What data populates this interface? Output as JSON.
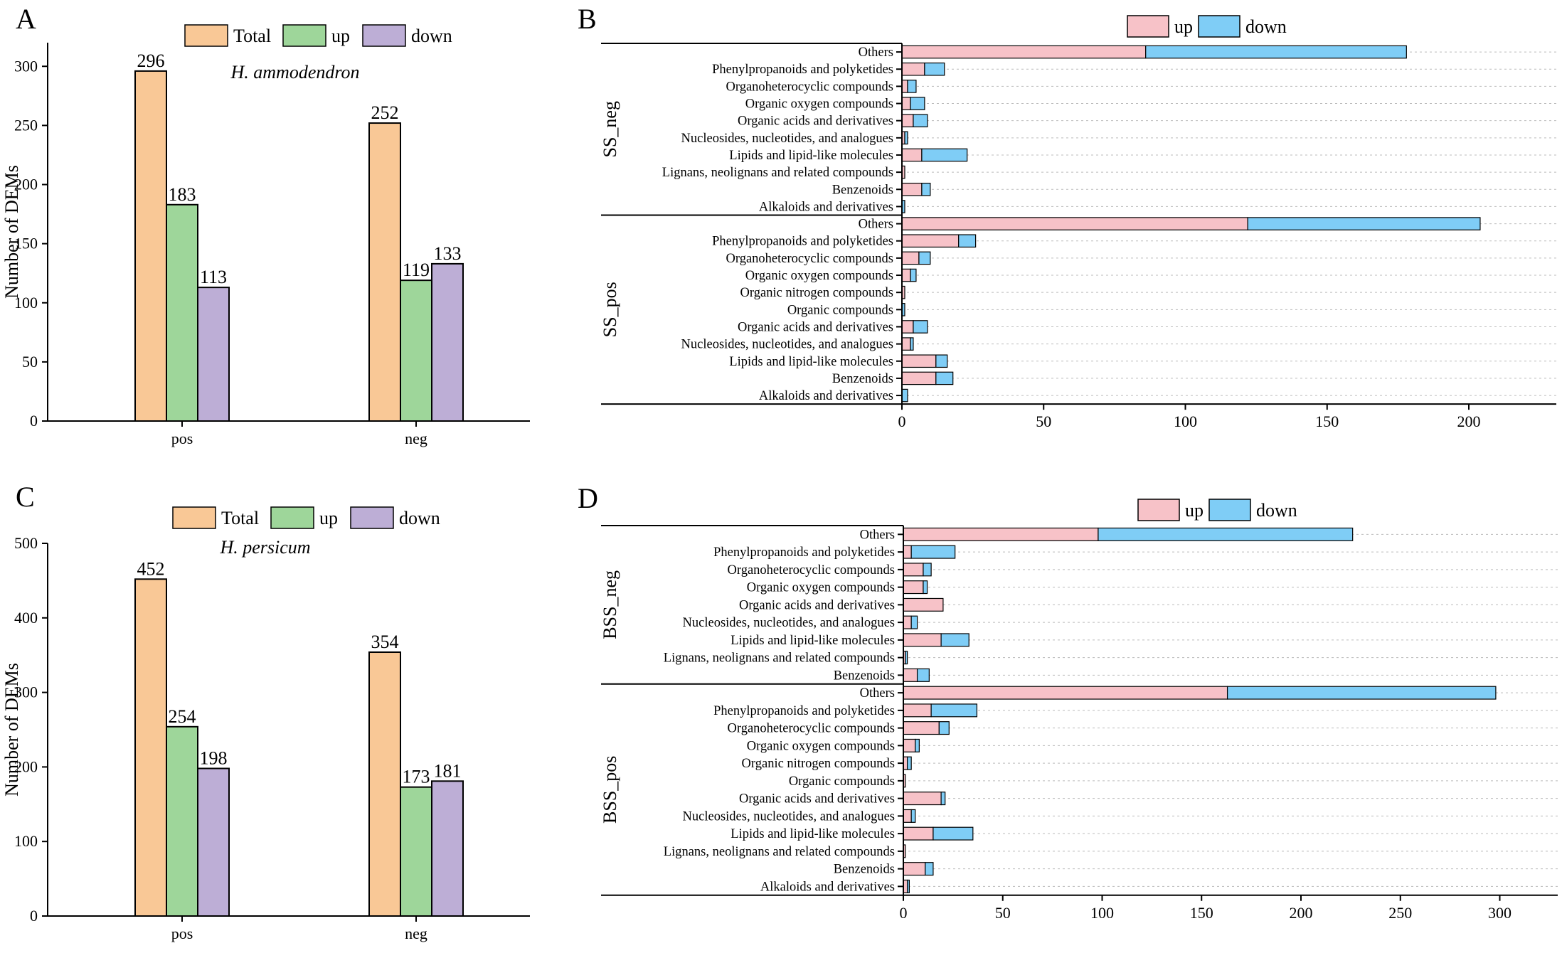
{
  "colors": {
    "total": "#F9C896",
    "up_green": "#9ED69A",
    "down_purple": "#BDAED6",
    "up_pink": "#F7C2C8",
    "down_blue": "#7FCDF6"
  },
  "chart_data": [
    {
      "panel_label": "A",
      "type": "bar",
      "subtitle": "H. ammodendron",
      "categories": [
        "pos",
        "neg"
      ],
      "series": [
        {
          "name": "Total",
          "values": [
            296,
            252
          ]
        },
        {
          "name": "up",
          "values": [
            183,
            119
          ]
        },
        {
          "name": "down",
          "values": [
            113,
            133
          ]
        }
      ],
      "ylabel": "Number of DEMs",
      "ylim": [
        0,
        320
      ],
      "yticks": [
        0,
        50,
        100,
        150,
        200,
        250,
        300
      ],
      "legend": "top-center"
    },
    {
      "panel_label": "B",
      "type": "bar",
      "orientation": "horizontal-stacked",
      "legend_series": [
        "up",
        "down"
      ],
      "xlim": [
        0,
        230
      ],
      "xticks": [
        0,
        50,
        100,
        150,
        200
      ],
      "groups": [
        {
          "name": "SS_neg",
          "categories": [
            "Others",
            "Phenylpropanoids and polyketides",
            "Organoheterocyclic compounds",
            "Organic oxygen compounds",
            "Organic acids and derivatives",
            "Nucleosides, nucleotides, and analogues",
            "Lipids and lipid-like molecules",
            "Lignans, neolignans and related compounds",
            "Benzenoids",
            "Alkaloids and derivatives"
          ],
          "up": [
            86,
            8,
            2,
            3,
            4,
            1,
            7,
            1,
            7,
            0
          ],
          "down": [
            92,
            7,
            3,
            5,
            5,
            1,
            16,
            0,
            3,
            1
          ]
        },
        {
          "name": "SS_pos",
          "categories": [
            "Others",
            "Phenylpropanoids and polyketides",
            "Organoheterocyclic compounds",
            "Organic oxygen compounds",
            "Organic nitrogen compounds",
            "Organic compounds",
            "Organic acids and derivatives",
            "Nucleosides, nucleotides, and analogues",
            "Lipids and lipid-like molecules",
            "Benzenoids",
            "Alkaloids and derivatives"
          ],
          "up": [
            122,
            20,
            6,
            3,
            1,
            0,
            4,
            3,
            12,
            12,
            0
          ],
          "down": [
            82,
            6,
            4,
            2,
            0,
            1,
            5,
            1,
            4,
            6,
            2
          ]
        }
      ]
    },
    {
      "panel_label": "C",
      "type": "bar",
      "subtitle": "H. persicum",
      "categories": [
        "pos",
        "neg"
      ],
      "series": [
        {
          "name": "Total",
          "values": [
            452,
            354
          ]
        },
        {
          "name": "up",
          "values": [
            254,
            173
          ]
        },
        {
          "name": "down",
          "values": [
            198,
            181
          ]
        }
      ],
      "ylabel": "Number of DEMs",
      "ylim": [
        0,
        500
      ],
      "yticks": [
        0,
        100,
        200,
        300,
        400,
        500
      ],
      "legend": "top-center"
    },
    {
      "panel_label": "D",
      "type": "bar",
      "orientation": "horizontal-stacked",
      "legend_series": [
        "up",
        "down"
      ],
      "xlim": [
        0,
        330
      ],
      "xticks": [
        0,
        50,
        100,
        150,
        200,
        250,
        300
      ],
      "groups": [
        {
          "name": "BSS_neg",
          "categories": [
            "Others",
            "Phenylpropanoids and polyketides",
            "Organoheterocyclic compounds",
            "Organic oxygen compounds",
            "Organic acids and derivatives",
            "Nucleosides, nucleotides, and analogues",
            "Lipids and lipid-like molecules",
            "Lignans, neolignans and related compounds",
            "Benzenoids"
          ],
          "up": [
            98,
            4,
            10,
            10,
            20,
            4,
            19,
            1,
            7
          ],
          "down": [
            128,
            22,
            4,
            2,
            0,
            3,
            14,
            1,
            6
          ]
        },
        {
          "name": "BSS_pos",
          "categories": [
            "Others",
            "Phenylpropanoids and polyketides",
            "Organoheterocyclic compounds",
            "Organic oxygen compounds",
            "Organic nitrogen compounds",
            "Organic compounds",
            "Organic acids and derivatives",
            "Nucleosides, nucleotides, and analogues",
            "Lipids and lipid-like molecules",
            "Lignans, neolignans and related compounds",
            "Benzenoids",
            "Alkaloids and derivatives"
          ],
          "up": [
            163,
            14,
            18,
            6,
            2,
            1,
            19,
            4,
            15,
            1,
            11,
            2
          ],
          "down": [
            135,
            23,
            5,
            2,
            2,
            0,
            2,
            2,
            20,
            0,
            4,
            1
          ]
        }
      ]
    }
  ]
}
